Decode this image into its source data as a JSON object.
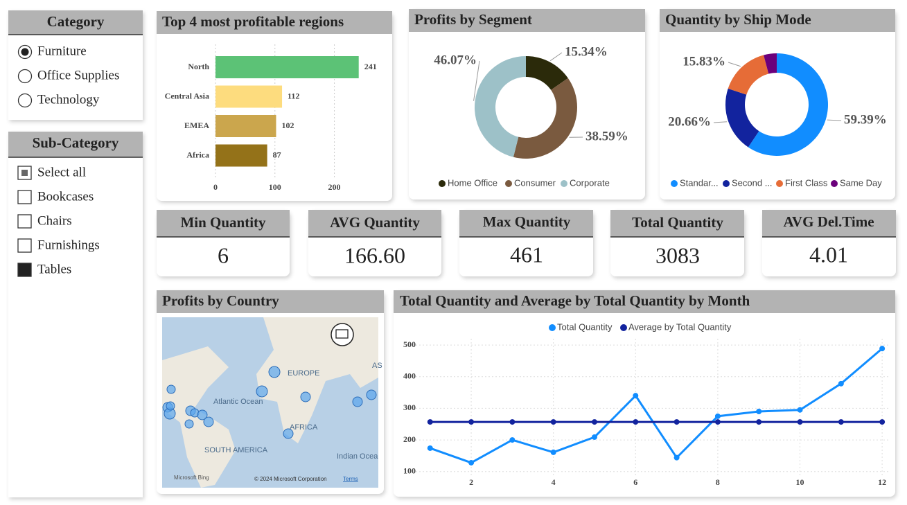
{
  "slicers": [
    {
      "title": "Category",
      "options": [
        "Furniture",
        "Office Supplies",
        "Technology"
      ]
    },
    {
      "title": "Sub-Category",
      "options": [
        "Select all",
        "Bookcases",
        "Chairs",
        "Furnishings",
        "Tables"
      ]
    }
  ],
  "cards": [
    {
      "title": "Min Quantity",
      "value": "6"
    },
    {
      "title": "AVG Quantity",
      "value": "166.60"
    },
    {
      "title": "Max Quantity",
      "value": "461"
    },
    {
      "title": "Total Quantity",
      "value": "3083"
    },
    {
      "title": "AVG Del.Time",
      "value": "4.01"
    }
  ],
  "map": {
    "title": "Profits by Country",
    "labels": [
      "EUROPE",
      "Atlantic Ocean",
      "AFRICA",
      "SOUTH AMERICA",
      "Indian Ocea",
      "AS"
    ],
    "logo": "Microsoft Bing",
    "attribution": "© 2024 Microsoft Corporation",
    "terms": "Terms"
  },
  "chart_data": [
    {
      "type": "bar",
      "orientation": "horizontal",
      "title": "Top 4 most profitable regions",
      "categories": [
        "North",
        "Central Asia",
        "EMEA",
        "Africa"
      ],
      "values": [
        241,
        112,
        102,
        87
      ],
      "colors": [
        "#5cc276",
        "#fddc7e",
        "#cba64d",
        "#947219"
      ],
      "xlim": [
        0,
        260
      ],
      "xticks": [
        0,
        100,
        200
      ],
      "grid": true
    },
    {
      "type": "pie",
      "donut": true,
      "title": "Profits by Segment",
      "categories": [
        "Home Office",
        "Consumer",
        "Corporate"
      ],
      "values": [
        15.34,
        38.59,
        46.07
      ],
      "value_labels": [
        "15.34%",
        "38.59%",
        "46.07%"
      ],
      "colors": [
        "#2b2a0a",
        "#7a5a3f",
        "#9dc1c8"
      ],
      "legend": "bottom"
    },
    {
      "type": "pie",
      "donut": true,
      "title": "Quantity by Ship Mode",
      "categories": [
        "Standar...",
        "Second ...",
        "First Class",
        "Same Day"
      ],
      "values": [
        59.39,
        20.66,
        15.83,
        4.12
      ],
      "value_labels": [
        "59.39%",
        "20.66%",
        "15.83%",
        null
      ],
      "colors": [
        "#118dff",
        "#12239e",
        "#e66c37",
        "#6b007b"
      ],
      "legend": "bottom"
    },
    {
      "type": "line",
      "title": "Total Quantity and Average by Total Quantity by Month",
      "x": [
        1,
        2,
        3,
        4,
        5,
        6,
        7,
        8,
        9,
        10,
        11,
        12
      ],
      "series": [
        {
          "name": "Total Quantity",
          "color": "#118dff",
          "values": [
            174,
            128,
            200,
            161,
            209,
            340,
            144,
            275,
            290,
            295,
            378,
            489
          ]
        },
        {
          "name": "Average by Total Quantity",
          "color": "#12239e",
          "values": [
            256.92,
            256.92,
            256.92,
            256.92,
            256.92,
            256.92,
            256.92,
            256.92,
            256.92,
            256.92,
            256.92,
            256.92
          ]
        }
      ],
      "xlim": [
        0.65,
        12.2
      ],
      "xticks": [
        2,
        4,
        6,
        8,
        10,
        12
      ],
      "ylim": [
        60,
        520
      ],
      "yticks": [
        100,
        200,
        300,
        400,
        500
      ],
      "grid": true,
      "legend": "top"
    }
  ]
}
